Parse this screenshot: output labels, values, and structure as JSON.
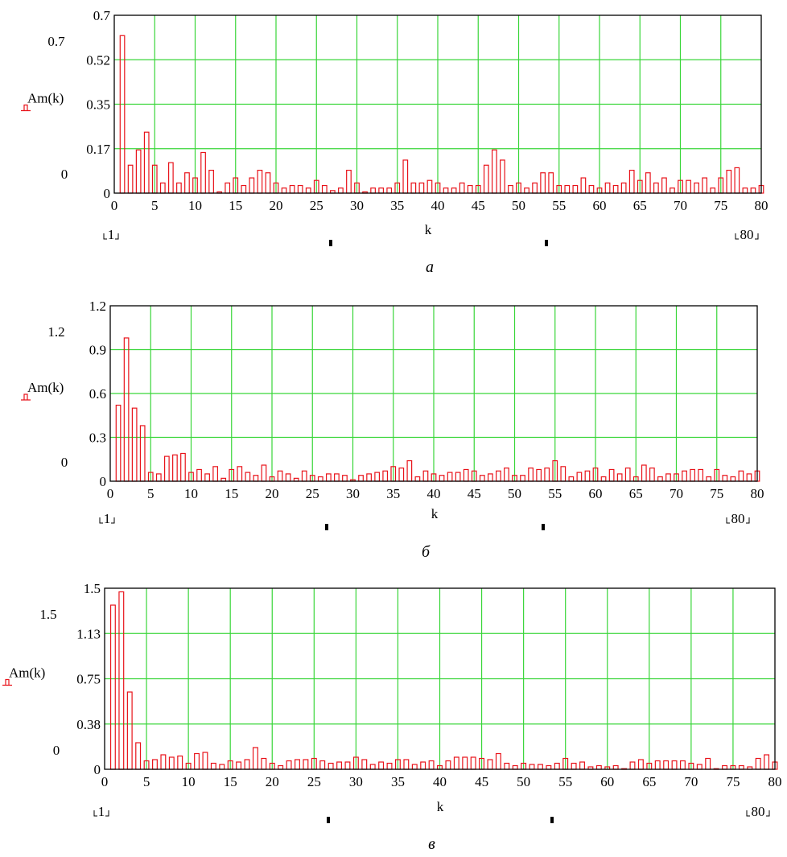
{
  "chart_data": [
    {
      "type": "bar",
      "caption": "а",
      "ylabel": "Am(k)",
      "xlabel": "k",
      "x_range_labels": [
        "1",
        "80"
      ],
      "ylim": [
        0,
        0.7
      ],
      "xlim": [
        0,
        80
      ],
      "y_tick_labels": [
        "0",
        "0.17",
        "0.35",
        "0.52",
        "0.7"
      ],
      "y_extra_labels": [
        "0.7",
        "0"
      ],
      "x_tick_labels": [
        "0",
        "5",
        "10",
        "15",
        "20",
        "25",
        "30",
        "35",
        "40",
        "45",
        "50",
        "55",
        "60",
        "65",
        "70",
        "75",
        "80"
      ],
      "grid": true,
      "x": [
        1,
        2,
        3,
        4,
        5,
        6,
        7,
        8,
        9,
        10,
        11,
        12,
        13,
        14,
        15,
        16,
        17,
        18,
        19,
        20,
        21,
        22,
        23,
        24,
        25,
        26,
        27,
        28,
        29,
        30,
        31,
        32,
        33,
        34,
        35,
        36,
        37,
        38,
        39,
        40,
        41,
        42,
        43,
        44,
        45,
        46,
        47,
        48,
        49,
        50,
        51,
        52,
        53,
        54,
        55,
        56,
        57,
        58,
        59,
        60,
        61,
        62,
        63,
        64,
        65,
        66,
        67,
        68,
        69,
        70,
        71,
        72,
        73,
        74,
        75,
        76,
        77,
        78,
        79,
        80
      ],
      "values": [
        0.62,
        0.11,
        0.17,
        0.24,
        0.11,
        0.04,
        0.12,
        0.04,
        0.08,
        0.06,
        0.16,
        0.09,
        0.005,
        0.04,
        0.06,
        0.03,
        0.06,
        0.09,
        0.08,
        0.04,
        0.02,
        0.03,
        0.03,
        0.02,
        0.05,
        0.03,
        0.01,
        0.02,
        0.09,
        0.04,
        0.005,
        0.02,
        0.02,
        0.02,
        0.04,
        0.13,
        0.04,
        0.04,
        0.05,
        0.04,
        0.02,
        0.02,
        0.04,
        0.03,
        0.03,
        0.11,
        0.17,
        0.13,
        0.03,
        0.04,
        0.02,
        0.04,
        0.08,
        0.08,
        0.03,
        0.03,
        0.03,
        0.06,
        0.03,
        0.02,
        0.04,
        0.03,
        0.04,
        0.09,
        0.05,
        0.08,
        0.04,
        0.06,
        0.02,
        0.05,
        0.05,
        0.04,
        0.06,
        0.02,
        0.06,
        0.09,
        0.1,
        0.02,
        0.02,
        0.03
      ]
    },
    {
      "type": "bar",
      "caption": "б",
      "ylabel": "Am(k)",
      "xlabel": "k",
      "x_range_labels": [
        "1",
        "80"
      ],
      "ylim": [
        0,
        1.2
      ],
      "xlim": [
        0,
        80
      ],
      "y_tick_labels": [
        "0",
        "0.3",
        "0.6",
        "0.9",
        "1.2"
      ],
      "y_extra_labels": [
        "1.2",
        "0"
      ],
      "x_tick_labels": [
        "0",
        "5",
        "10",
        "15",
        "20",
        "25",
        "30",
        "35",
        "40",
        "45",
        "50",
        "55",
        "60",
        "65",
        "70",
        "75",
        "80"
      ],
      "grid": true,
      "x": [
        1,
        2,
        3,
        4,
        5,
        6,
        7,
        8,
        9,
        10,
        11,
        12,
        13,
        14,
        15,
        16,
        17,
        18,
        19,
        20,
        21,
        22,
        23,
        24,
        25,
        26,
        27,
        28,
        29,
        30,
        31,
        32,
        33,
        34,
        35,
        36,
        37,
        38,
        39,
        40,
        41,
        42,
        43,
        44,
        45,
        46,
        47,
        48,
        49,
        50,
        51,
        52,
        53,
        54,
        55,
        56,
        57,
        58,
        59,
        60,
        61,
        62,
        63,
        64,
        65,
        66,
        67,
        68,
        69,
        70,
        71,
        72,
        73,
        74,
        75,
        76,
        77,
        78,
        79,
        80
      ],
      "values": [
        0.52,
        0.98,
        0.5,
        0.38,
        0.06,
        0.05,
        0.17,
        0.18,
        0.19,
        0.06,
        0.08,
        0.05,
        0.1,
        0.02,
        0.08,
        0.1,
        0.06,
        0.04,
        0.11,
        0.03,
        0.07,
        0.05,
        0.02,
        0.07,
        0.04,
        0.03,
        0.05,
        0.05,
        0.04,
        0.01,
        0.04,
        0.05,
        0.06,
        0.07,
        0.1,
        0.09,
        0.14,
        0.03,
        0.07,
        0.05,
        0.04,
        0.06,
        0.06,
        0.08,
        0.07,
        0.04,
        0.05,
        0.07,
        0.09,
        0.04,
        0.04,
        0.09,
        0.08,
        0.09,
        0.14,
        0.1,
        0.03,
        0.06,
        0.07,
        0.09,
        0.03,
        0.08,
        0.05,
        0.09,
        0.03,
        0.11,
        0.09,
        0.03,
        0.05,
        0.05,
        0.07,
        0.08,
        0.08,
        0.03,
        0.08,
        0.04,
        0.03,
        0.07,
        0.05,
        0.07
      ]
    },
    {
      "type": "bar",
      "caption": "в",
      "ylabel": "Am(k)",
      "xlabel": "k",
      "x_range_labels": [
        "1",
        "80"
      ],
      "ylim": [
        0,
        1.5
      ],
      "xlim": [
        0,
        80
      ],
      "y_tick_labels": [
        "0",
        "0.38",
        "0.75",
        "1.13",
        "1.5"
      ],
      "y_extra_labels": [
        "1.5",
        "0"
      ],
      "x_tick_labels": [
        "0",
        "5",
        "10",
        "15",
        "20",
        "25",
        "30",
        "35",
        "40",
        "45",
        "50",
        "55",
        "60",
        "65",
        "70",
        "75",
        "80"
      ],
      "grid": true,
      "x": [
        1,
        2,
        3,
        4,
        5,
        6,
        7,
        8,
        9,
        10,
        11,
        12,
        13,
        14,
        15,
        16,
        17,
        18,
        19,
        20,
        21,
        22,
        23,
        24,
        25,
        26,
        27,
        28,
        29,
        30,
        31,
        32,
        33,
        34,
        35,
        36,
        37,
        38,
        39,
        40,
        41,
        42,
        43,
        44,
        45,
        46,
        47,
        48,
        49,
        50,
        51,
        52,
        53,
        54,
        55,
        56,
        57,
        58,
        59,
        60,
        61,
        62,
        63,
        64,
        65,
        66,
        67,
        68,
        69,
        70,
        71,
        72,
        73,
        74,
        75,
        76,
        77,
        78,
        79,
        80
      ],
      "values": [
        1.36,
        1.47,
        0.64,
        0.22,
        0.07,
        0.08,
        0.12,
        0.1,
        0.11,
        0.05,
        0.13,
        0.14,
        0.05,
        0.04,
        0.07,
        0.06,
        0.08,
        0.18,
        0.09,
        0.05,
        0.03,
        0.07,
        0.08,
        0.08,
        0.09,
        0.07,
        0.05,
        0.06,
        0.06,
        0.1,
        0.08,
        0.04,
        0.06,
        0.05,
        0.08,
        0.08,
        0.04,
        0.06,
        0.07,
        0.03,
        0.07,
        0.1,
        0.1,
        0.1,
        0.09,
        0.08,
        0.13,
        0.05,
        0.03,
        0.05,
        0.04,
        0.04,
        0.03,
        0.05,
        0.09,
        0.05,
        0.06,
        0.02,
        0.03,
        0.02,
        0.03,
        0.005,
        0.06,
        0.08,
        0.05,
        0.07,
        0.07,
        0.07,
        0.07,
        0.05,
        0.04,
        0.09,
        0.005,
        0.03,
        0.03,
        0.03,
        0.02,
        0.09,
        0.12,
        0.06
      ]
    }
  ]
}
